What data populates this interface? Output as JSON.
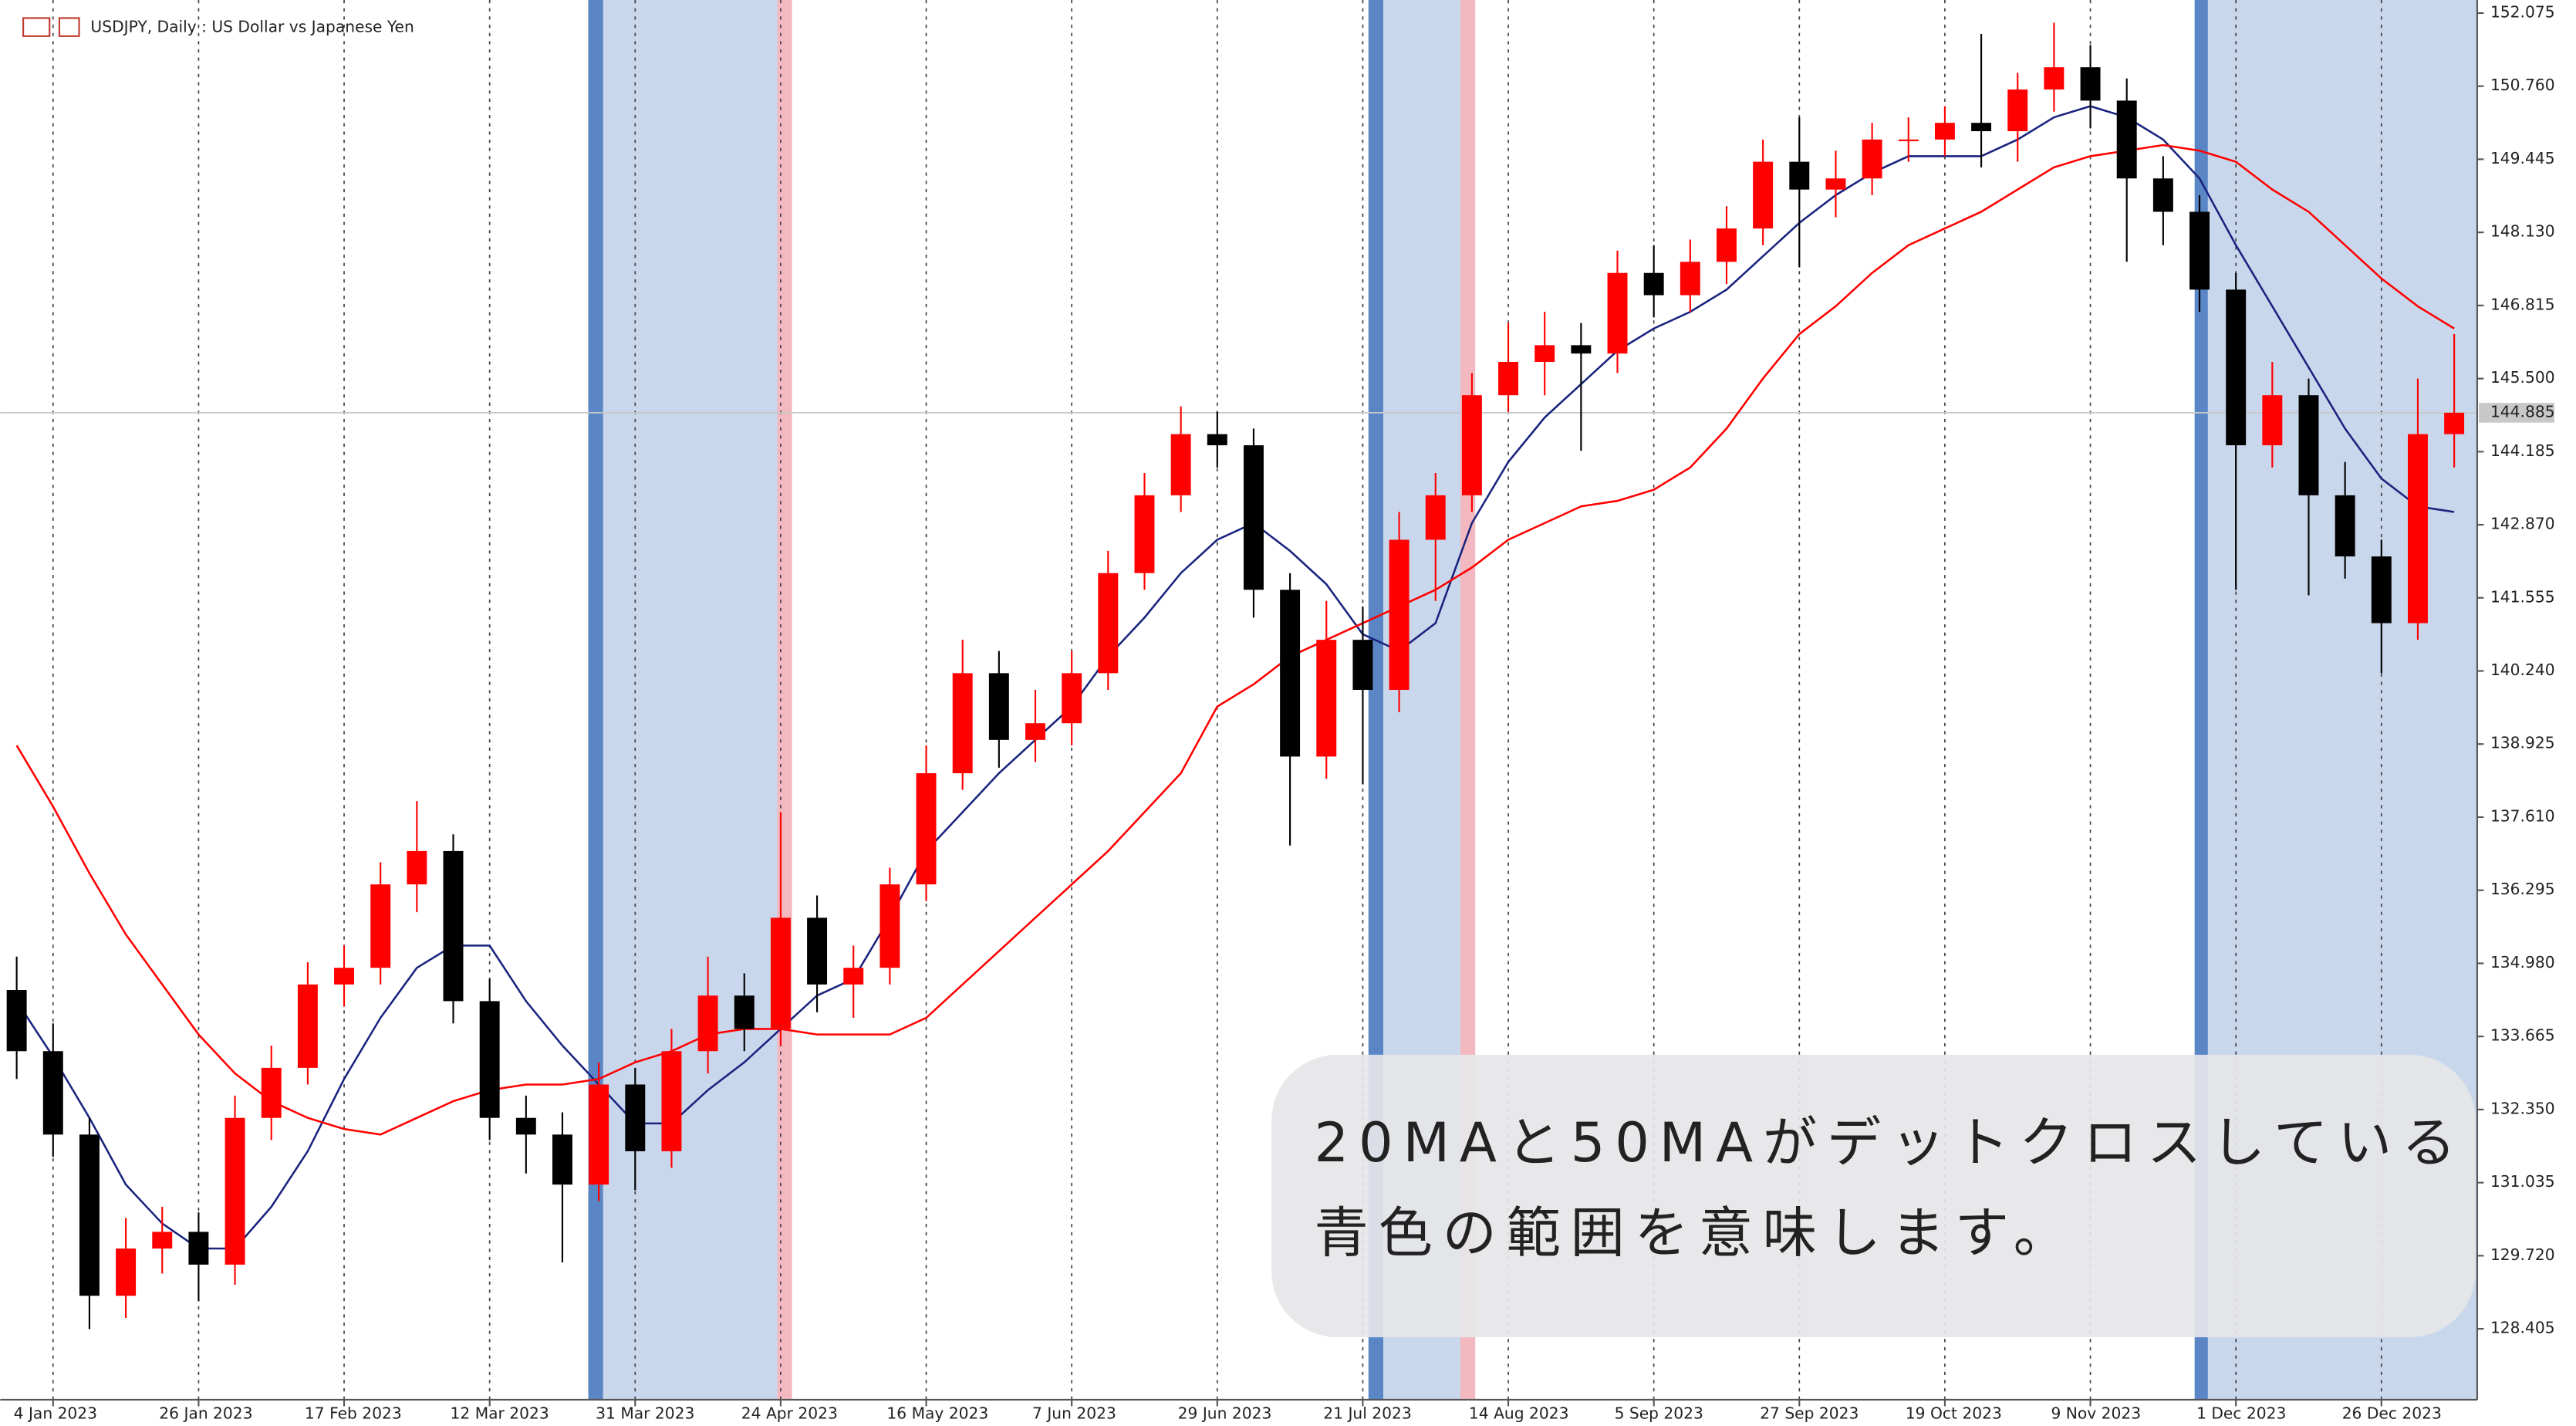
{
  "chart_data": {
    "type": "candlestick",
    "title": "USDJPY, Daily : US Dollar vs Japanese Yen",
    "up_color": "#ff0000",
    "down_color": "#000000",
    "categories": [
      null,
      "4 Jan 2023",
      null,
      null,
      null,
      "26 Jan 2023",
      null,
      null,
      null,
      "17 Feb 2023",
      null,
      null,
      null,
      "12 Mar 2023",
      null,
      null,
      null,
      "31 Mar 2023",
      null,
      null,
      null,
      "24 Apr 2023",
      null,
      null,
      null,
      "16 May 2023",
      null,
      null,
      null,
      "7 Jun 2023",
      null,
      null,
      null,
      "29 Jun 2023",
      null,
      null,
      null,
      "21 Jul 2023",
      null,
      null,
      null,
      "14 Aug 2023",
      null,
      null,
      null,
      "5 Sep 2023",
      null,
      null,
      null,
      "27 Sep 2023",
      null,
      null,
      null,
      "19 Oct 2023",
      null,
      null,
      null,
      "9 Nov 2023",
      null,
      null,
      null,
      "1 Dec 2023",
      null,
      null,
      null,
      "26 Dec 2023",
      null,
      null
    ],
    "ohlc": [
      [
        134.5,
        135.1,
        132.9,
        133.4
      ],
      [
        133.4,
        133.9,
        131.5,
        131.9
      ],
      [
        131.9,
        132.2,
        128.4,
        129.0
      ],
      [
        129.0,
        130.4,
        128.6,
        129.85
      ],
      [
        129.85,
        130.6,
        129.4,
        130.15
      ],
      [
        130.15,
        130.5,
        128.9,
        129.56
      ],
      [
        129.56,
        132.6,
        129.2,
        132.2
      ],
      [
        132.2,
        133.5,
        131.8,
        133.1
      ],
      [
        133.1,
        135.0,
        132.8,
        134.6
      ],
      [
        134.6,
        135.3,
        134.2,
        134.9
      ],
      [
        134.9,
        136.8,
        134.6,
        136.4
      ],
      [
        136.4,
        137.9,
        135.9,
        137.0
      ],
      [
        137.0,
        137.3,
        133.9,
        134.3
      ],
      [
        134.3,
        134.7,
        131.8,
        132.2
      ],
      [
        132.2,
        132.6,
        131.2,
        131.9
      ],
      [
        131.9,
        132.3,
        129.6,
        131.0
      ],
      [
        131.0,
        133.2,
        130.7,
        132.8
      ],
      [
        132.8,
        133.1,
        130.9,
        131.6
      ],
      [
        131.6,
        133.8,
        131.3,
        133.4
      ],
      [
        133.4,
        135.1,
        133.0,
        134.4
      ],
      [
        134.4,
        134.8,
        133.4,
        133.8
      ],
      [
        133.8,
        137.7,
        133.5,
        135.8
      ],
      [
        135.8,
        136.2,
        134.1,
        134.6
      ],
      [
        134.6,
        135.3,
        134.0,
        134.9
      ],
      [
        134.9,
        136.7,
        134.6,
        136.4
      ],
      [
        136.4,
        138.9,
        136.1,
        138.4
      ],
      [
        138.4,
        140.8,
        138.1,
        140.2
      ],
      [
        140.2,
        140.6,
        138.5,
        139.0
      ],
      [
        139.0,
        139.9,
        138.6,
        139.3
      ],
      [
        139.3,
        140.6,
        138.9,
        140.2
      ],
      [
        140.2,
        142.4,
        139.9,
        142.0
      ],
      [
        142.0,
        143.8,
        141.7,
        143.4
      ],
      [
        143.4,
        145.0,
        143.1,
        144.5
      ],
      [
        144.5,
        144.9,
        143.9,
        144.3
      ],
      [
        144.3,
        144.6,
        141.2,
        141.7
      ],
      [
        141.7,
        142.0,
        137.1,
        138.7
      ],
      [
        138.7,
        141.5,
        138.3,
        140.8
      ],
      [
        140.8,
        141.4,
        138.2,
        139.9
      ],
      [
        139.9,
        143.1,
        139.5,
        142.6
      ],
      [
        142.6,
        143.8,
        141.5,
        143.4
      ],
      [
        143.4,
        145.6,
        143.1,
        145.2
      ],
      [
        145.2,
        146.5,
        144.9,
        145.8
      ],
      [
        145.8,
        146.7,
        145.2,
        146.1
      ],
      [
        146.1,
        146.5,
        144.2,
        145.95
      ],
      [
        145.95,
        147.8,
        145.6,
        147.4
      ],
      [
        147.4,
        147.9,
        146.6,
        147.0
      ],
      [
        147.0,
        148.0,
        146.7,
        147.6
      ],
      [
        147.6,
        148.6,
        147.2,
        148.2
      ],
      [
        148.2,
        149.8,
        147.9,
        149.4
      ],
      [
        149.4,
        150.2,
        147.5,
        148.9
      ],
      [
        148.9,
        149.6,
        148.4,
        149.1
      ],
      [
        149.1,
        150.1,
        148.8,
        149.8
      ],
      [
        149.8,
        150.2,
        149.4,
        149.8
      ],
      [
        149.8,
        150.4,
        149.5,
        150.1
      ],
      [
        150.1,
        151.7,
        149.3,
        149.95
      ],
      [
        149.95,
        151.0,
        149.4,
        150.7
      ],
      [
        150.7,
        151.9,
        150.3,
        151.1
      ],
      [
        151.1,
        151.5,
        150.0,
        150.5
      ],
      [
        150.5,
        150.9,
        147.6,
        149.1
      ],
      [
        149.1,
        149.5,
        147.9,
        148.5
      ],
      [
        148.5,
        148.8,
        146.7,
        147.1
      ],
      [
        147.1,
        147.4,
        141.7,
        144.3
      ],
      [
        144.3,
        145.8,
        143.9,
        145.2
      ],
      [
        145.2,
        145.5,
        141.6,
        143.4
      ],
      [
        143.4,
        144.0,
        141.9,
        142.3
      ],
      [
        142.3,
        142.6,
        140.2,
        141.1
      ],
      [
        141.1,
        145.5,
        140.8,
        144.5
      ],
      [
        144.5,
        146.3,
        143.9,
        144.885
      ]
    ],
    "ma_lines": [
      {
        "color": "#1a237e",
        "values": [
          134.3,
          133.3,
          132.2,
          131.0,
          130.3,
          129.85,
          129.85,
          130.6,
          131.6,
          132.9,
          134.0,
          134.9,
          135.3,
          135.3,
          134.3,
          133.5,
          132.8,
          132.1,
          132.1,
          132.7,
          133.2,
          133.8,
          134.4,
          134.7,
          135.8,
          137.0,
          137.7,
          138.4,
          139.0,
          139.6,
          140.5,
          141.2,
          142.0,
          142.6,
          142.9,
          142.4,
          141.8,
          140.9,
          140.6,
          141.1,
          142.9,
          144.0,
          144.8,
          145.4,
          146.0,
          146.4,
          146.7,
          147.1,
          147.7,
          148.3,
          148.8,
          149.2,
          149.5,
          149.5,
          149.5,
          149.8,
          150.2,
          150.4,
          150.2,
          149.8,
          149.1,
          147.9,
          146.8,
          145.7,
          144.6,
          143.7,
          143.2,
          143.1
        ]
      },
      {
        "color": "#ff0000",
        "values": [
          138.9,
          137.8,
          136.6,
          135.5,
          134.6,
          133.7,
          133.0,
          132.5,
          132.2,
          132.0,
          131.9,
          132.2,
          132.5,
          132.7,
          132.8,
          132.8,
          132.9,
          133.2,
          133.4,
          133.7,
          133.8,
          133.8,
          133.7,
          133.7,
          133.7,
          134.0,
          134.6,
          135.2,
          135.8,
          136.4,
          137.0,
          137.7,
          138.4,
          139.6,
          140.0,
          140.5,
          140.8,
          141.1,
          141.4,
          141.7,
          142.1,
          142.6,
          142.9,
          143.2,
          143.3,
          143.5,
          143.9,
          144.6,
          145.5,
          146.3,
          146.8,
          147.4,
          147.9,
          148.2,
          148.5,
          148.9,
          149.3,
          149.5,
          149.6,
          149.7,
          149.6,
          149.4,
          148.9,
          148.5,
          147.9,
          147.3,
          146.8,
          146.4
        ]
      }
    ],
    "ylim": [
      127.13,
      152.31
    ],
    "yticks": [
      152.075,
      {
        "value": 150.76,
        "label": "150.760"
      },
      149.445,
      {
        "value": 148.13,
        "label": "148.130"
      },
      146.815,
      {
        "value": 145.5,
        "label": "145.500"
      },
      144.185,
      {
        "value": 142.87,
        "label": "142.870"
      },
      141.555,
      {
        "value": 140.24,
        "label": "140.240"
      },
      138.925,
      {
        "value": 137.61,
        "label": "137.610"
      },
      136.295,
      {
        "value": 134.98,
        "label": "134.980"
      },
      133.665,
      {
        "value": 132.35,
        "label": "132.350"
      },
      131.035,
      {
        "value": 129.72,
        "label": "129.720"
      },
      128.405
    ],
    "current_price": 144.885,
    "grid": true,
    "annotation": [
      "20MAと50MAがデットクロスしている",
      "青色の範囲を意味します。"
    ]
  }
}
